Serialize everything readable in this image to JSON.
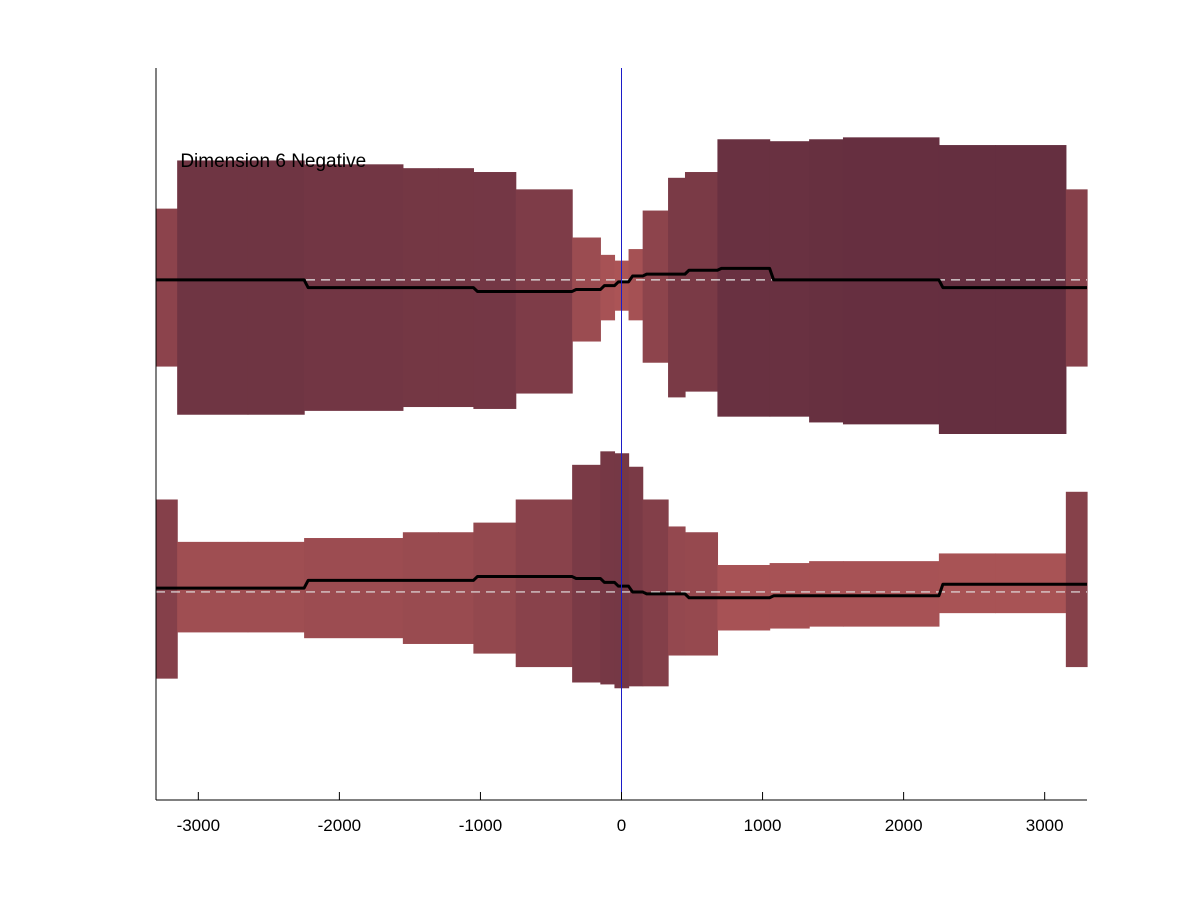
{
  "chart_data": {
    "type": "area",
    "annotation": "Dimension 6 Negative",
    "xlim": [
      -3300,
      3300
    ],
    "x_ticks": [
      -3000,
      -2000,
      -1000,
      0,
      1000,
      2000,
      3000
    ],
    "x_tick_labels": [
      "-3000",
      "-2000",
      "-1000",
      "0",
      "1000",
      "2000",
      "3000"
    ],
    "y_axis_shown": false,
    "grid": false,
    "reference_line": {
      "x": 0,
      "color": "#1c1cc8"
    },
    "color_encoding": "band shade darkens with band width",
    "bands": [
      {
        "baseline": 0.5,
        "segments": [
          {
            "x0": -3300,
            "x1": -3150,
            "lo": 0.05,
            "hi": 0.87,
            "mean": 0.5
          },
          {
            "x0": -3150,
            "x1": -2650,
            "lo": -0.2,
            "hi": 1.12,
            "mean": 0.5
          },
          {
            "x0": -2650,
            "x1": -2250,
            "lo": -0.2,
            "hi": 1.12,
            "mean": 0.5
          },
          {
            "x0": -2250,
            "x1": -1550,
            "lo": -0.18,
            "hi": 1.1,
            "mean": 0.46
          },
          {
            "x0": -1550,
            "x1": -1300,
            "lo": -0.16,
            "hi": 1.08,
            "mean": 0.46
          },
          {
            "x0": -1300,
            "x1": -1050,
            "lo": -0.16,
            "hi": 1.08,
            "mean": 0.46
          },
          {
            "x0": -1050,
            "x1": -750,
            "lo": -0.17,
            "hi": 1.06,
            "mean": 0.44
          },
          {
            "x0": -750,
            "x1": -350,
            "lo": -0.09,
            "hi": 0.97,
            "mean": 0.44
          },
          {
            "x0": -350,
            "x1": -150,
            "lo": 0.18,
            "hi": 0.72,
            "mean": 0.45
          },
          {
            "x0": -150,
            "x1": -50,
            "lo": 0.29,
            "hi": 0.63,
            "mean": 0.47
          },
          {
            "x0": -50,
            "x1": 50,
            "lo": 0.34,
            "hi": 0.6,
            "mean": 0.49
          },
          {
            "x0": 50,
            "x1": 150,
            "lo": 0.29,
            "hi": 0.66,
            "mean": 0.52
          },
          {
            "x0": 150,
            "x1": 330,
            "lo": 0.07,
            "hi": 0.86,
            "mean": 0.53
          },
          {
            "x0": 330,
            "x1": 450,
            "lo": -0.11,
            "hi": 1.03,
            "mean": 0.53
          },
          {
            "x0": 450,
            "x1": 680,
            "lo": -0.08,
            "hi": 1.06,
            "mean": 0.55
          },
          {
            "x0": 680,
            "x1": 1050,
            "lo": -0.21,
            "hi": 1.23,
            "mean": 0.56
          },
          {
            "x0": 1050,
            "x1": 1330,
            "lo": -0.21,
            "hi": 1.22,
            "mean": 0.5
          },
          {
            "x0": 1330,
            "x1": 1570,
            "lo": -0.24,
            "hi": 1.23,
            "mean": 0.5
          },
          {
            "x0": 1570,
            "x1": 2250,
            "lo": -0.25,
            "hi": 1.24,
            "mean": 0.5
          },
          {
            "x0": 2250,
            "x1": 2650,
            "lo": -0.3,
            "hi": 1.2,
            "mean": 0.46
          },
          {
            "x0": 2650,
            "x1": 3150,
            "lo": -0.3,
            "hi": 1.2,
            "mean": 0.46
          },
          {
            "x0": 3150,
            "x1": 3300,
            "lo": 0.05,
            "hi": 0.97,
            "mean": 0.46
          }
        ]
      },
      {
        "baseline": -1.12,
        "segments": [
          {
            "x0": -3300,
            "x1": -3150,
            "lo": -1.57,
            "hi": -0.64,
            "mean": -1.1
          },
          {
            "x0": -3150,
            "x1": -2650,
            "lo": -1.33,
            "hi": -0.86,
            "mean": -1.1
          },
          {
            "x0": -2650,
            "x1": -2250,
            "lo": -1.33,
            "hi": -0.86,
            "mean": -1.1
          },
          {
            "x0": -2250,
            "x1": -1550,
            "lo": -1.36,
            "hi": -0.84,
            "mean": -1.06
          },
          {
            "x0": -1550,
            "x1": -1300,
            "lo": -1.39,
            "hi": -0.81,
            "mean": -1.06
          },
          {
            "x0": -1300,
            "x1": -1050,
            "lo": -1.39,
            "hi": -0.81,
            "mean": -1.06
          },
          {
            "x0": -1050,
            "x1": -750,
            "lo": -1.44,
            "hi": -0.76,
            "mean": -1.04
          },
          {
            "x0": -750,
            "x1": -350,
            "lo": -1.51,
            "hi": -0.64,
            "mean": -1.04
          },
          {
            "x0": -350,
            "x1": -150,
            "lo": -1.59,
            "hi": -0.46,
            "mean": -1.05
          },
          {
            "x0": -150,
            "x1": -50,
            "lo": -1.6,
            "hi": -0.39,
            "mean": -1.07
          },
          {
            "x0": -50,
            "x1": 50,
            "lo": -1.62,
            "hi": -0.4,
            "mean": -1.09
          },
          {
            "x0": 50,
            "x1": 150,
            "lo": -1.61,
            "hi": -0.47,
            "mean": -1.12
          },
          {
            "x0": 150,
            "x1": 330,
            "lo": -1.61,
            "hi": -0.64,
            "mean": -1.13
          },
          {
            "x0": 330,
            "x1": 450,
            "lo": -1.45,
            "hi": -0.78,
            "mean": -1.13
          },
          {
            "x0": 450,
            "x1": 680,
            "lo": -1.45,
            "hi": -0.81,
            "mean": -1.15
          },
          {
            "x0": 680,
            "x1": 1050,
            "lo": -1.32,
            "hi": -0.98,
            "mean": -1.15
          },
          {
            "x0": 1050,
            "x1": 1330,
            "lo": -1.31,
            "hi": -0.97,
            "mean": -1.14
          },
          {
            "x0": 1330,
            "x1": 1570,
            "lo": -1.3,
            "hi": -0.96,
            "mean": -1.14
          },
          {
            "x0": 1570,
            "x1": 2250,
            "lo": -1.3,
            "hi": -0.96,
            "mean": -1.14
          },
          {
            "x0": 2250,
            "x1": 2650,
            "lo": -1.23,
            "hi": -0.92,
            "mean": -1.08
          },
          {
            "x0": 2650,
            "x1": 3150,
            "lo": -1.23,
            "hi": -0.92,
            "mean": -1.08
          },
          {
            "x0": 3150,
            "x1": 3300,
            "lo": -1.51,
            "hi": -0.6,
            "mean": -1.08
          }
        ]
      }
    ]
  }
}
